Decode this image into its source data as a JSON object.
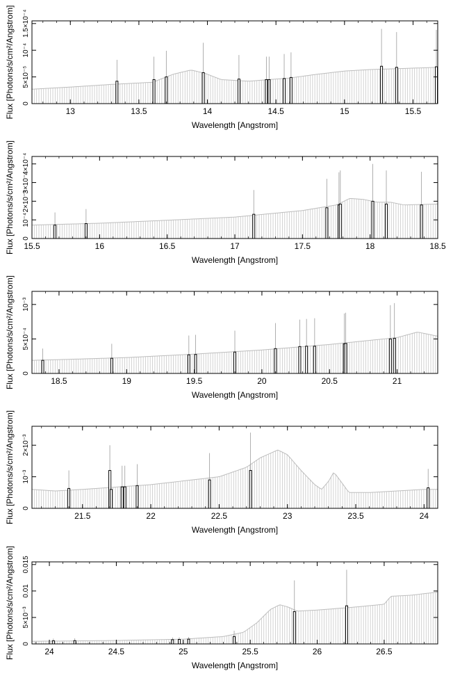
{
  "chart_data": [
    {
      "type": "line",
      "xlabel": "Wavelength [Angstrom]",
      "ylabel": "Flux [Photons/s/cm²/Angstrom]",
      "xlim": [
        12.72,
        15.68
      ],
      "ylim": [
        0,
        0.000155
      ],
      "x_ticks": [
        "13",
        "13.5",
        "14",
        "14.5",
        "15",
        "15.5"
      ],
      "x_tick_values": [
        13,
        13.5,
        14,
        14.5,
        15,
        15.5
      ],
      "y_ticks": [
        "0",
        "5×10⁻⁵",
        "10⁻⁴",
        "1.5×10⁻⁴"
      ],
      "y_tick_values": [
        0,
        5e-05,
        0.0001,
        0.00015
      ],
      "continuum": {
        "x": [
          12.72,
          13.0,
          13.3,
          13.6,
          13.75,
          13.88,
          13.98,
          14.1,
          14.3,
          14.45,
          14.6,
          14.8,
          15.0,
          15.2,
          15.45,
          15.68
        ],
        "y": [
          2.7e-05,
          3.1e-05,
          3.6e-05,
          4e-05,
          5.5e-05,
          6.3e-05,
          5.7e-05,
          4.5e-05,
          4.2e-05,
          4.5e-05,
          4.8e-05,
          5.5e-05,
          6.1e-05,
          6.4e-05,
          6.6e-05,
          6.8e-05
        ]
      },
      "lines": {
        "x": [
          13.34,
          13.61,
          13.7,
          13.97,
          14.23,
          14.43,
          14.45,
          14.56,
          14.61,
          15.27,
          15.38,
          15.67
        ],
        "y": [
          4.2e-05,
          4.5e-05,
          5e-05,
          5.8e-05,
          4.6e-05,
          4.5e-05,
          4.5e-05,
          4.7e-05,
          4.9e-05,
          7e-05,
          6.8e-05,
          6.9e-05
        ],
        "err": [
          8.2e-05,
          8.8e-05,
          9.9e-05,
          0.000114,
          9.1e-05,
          8.8e-05,
          8.8e-05,
          9.3e-05,
          9.6e-05,
          0.00014,
          0.000134,
          0.000138
        ]
      }
    },
    {
      "type": "line",
      "xlabel": "Wavelength [Angstrom]",
      "ylabel": "Flux [Photons/s/cm²/Angstrom]",
      "xlim": [
        15.5,
        18.5
      ],
      "ylim": [
        0,
        0.00044
      ],
      "x_ticks": [
        "15.5",
        "16",
        "16.5",
        "17",
        "17.5",
        "18",
        "18.5"
      ],
      "x_tick_values": [
        15.5,
        16,
        16.5,
        17,
        17.5,
        18,
        18.5
      ],
      "y_ticks": [
        "0",
        "10⁻⁴",
        "2×10⁻⁴",
        "3×10⁻⁴",
        "4×10⁻⁴"
      ],
      "y_tick_values": [
        0,
        0.0001,
        0.0002,
        0.0003,
        0.0004
      ],
      "continuum": {
        "x": [
          15.5,
          16.0,
          16.5,
          17.0,
          17.5,
          17.75,
          17.85,
          17.95,
          18.05,
          18.15,
          18.25,
          18.35,
          18.5
        ],
        "y": [
          7.2e-05,
          8.2e-05,
          9.8e-05,
          0.000115,
          0.00015,
          0.00018,
          0.000215,
          0.00021,
          0.000195,
          0.000195,
          0.00018,
          0.000182,
          0.000185
        ]
      },
      "lines": {
        "x": [
          15.67,
          15.9,
          17.14,
          17.68,
          17.77,
          17.78,
          18.02,
          18.12,
          18.38
        ],
        "y": [
          7.2e-05,
          8e-05,
          0.00013,
          0.000165,
          0.00018,
          0.000185,
          0.0002,
          0.000185,
          0.00018
        ],
        "err": [
          0.00014,
          0.000158,
          0.00026,
          0.00032,
          0.000355,
          0.000365,
          0.0004,
          0.000365,
          0.000358
        ]
      }
    },
    {
      "type": "line",
      "xlabel": "Wavelength [Angstrom]",
      "ylabel": "Flux [Photons/s/cm²/Angstrom]",
      "xlim": [
        18.3,
        21.3
      ],
      "ylim": [
        0,
        0.00119
      ],
      "x_ticks": [
        "18.5",
        "19",
        "19.5",
        "20",
        "20.5",
        "21"
      ],
      "x_tick_values": [
        18.5,
        19,
        19.5,
        20,
        20.5,
        21
      ],
      "y_ticks": [
        "0",
        "5×10⁻⁴",
        "10⁻³"
      ],
      "y_tick_values": [
        0,
        0.0005,
        0.001
      ],
      "continuum": {
        "x": [
          18.3,
          18.5,
          19.0,
          19.5,
          20.0,
          20.5,
          21.0,
          21.15,
          21.3
        ],
        "y": [
          0.00019,
          0.0002,
          0.00023,
          0.00028,
          0.00034,
          0.00042,
          0.00052,
          0.0006,
          0.00054
        ]
      },
      "lines": {
        "x": [
          18.38,
          18.89,
          19.46,
          19.51,
          19.8,
          20.1,
          20.28,
          20.33,
          20.39,
          20.61,
          20.62,
          20.95,
          20.98
        ],
        "y": [
          0.00019,
          0.00022,
          0.00027,
          0.000275,
          0.00031,
          0.00036,
          0.00039,
          0.000395,
          0.000395,
          0.00043,
          0.000435,
          0.0005,
          0.00051
        ],
        "err": [
          0.00036,
          0.00043,
          0.00055,
          0.00056,
          0.00062,
          0.00073,
          0.00078,
          0.00079,
          0.0008,
          0.00087,
          0.00088,
          0.00099,
          0.00102
        ]
      }
    },
    {
      "type": "line",
      "xlabel": "Wavelength [Angstrom]",
      "ylabel": "Flux [Photons/s/cm²/Angstrom]",
      "xlim": [
        21.13,
        24.1
      ],
      "ylim": [
        0,
        0.0026
      ],
      "x_ticks": [
        "21.5",
        "22",
        "22.5",
        "23",
        "23.5",
        "24"
      ],
      "x_tick_values": [
        21.5,
        22,
        22.5,
        23,
        23.5,
        24
      ],
      "y_ticks": [
        "0",
        "10⁻³",
        "2×10⁻³"
      ],
      "y_tick_values": [
        0,
        0.001,
        0.002
      ],
      "continuum": {
        "x": [
          21.13,
          21.3,
          21.5,
          22.0,
          22.5,
          22.7,
          22.8,
          22.93,
          23.0,
          23.1,
          23.2,
          23.25,
          23.3,
          23.34,
          23.4,
          23.45,
          23.6,
          24.0,
          24.1
        ],
        "y": [
          0.0006,
          0.00055,
          0.0006,
          0.00075,
          0.001,
          0.0013,
          0.0016,
          0.00185,
          0.0017,
          0.0012,
          0.00075,
          0.0006,
          0.00085,
          0.00115,
          0.0008,
          0.0005,
          0.0005,
          0.0006,
          0.0006
        ]
      },
      "lines": {
        "x": [
          21.4,
          21.7,
          21.71,
          21.79,
          21.81,
          21.9,
          22.43,
          22.73,
          24.03
        ],
        "y": [
          0.00063,
          0.0012,
          0.0006,
          0.00068,
          0.00068,
          0.00072,
          0.0009,
          0.0012,
          0.00065
        ],
        "err": [
          0.0012,
          0.002,
          0.0012,
          0.00135,
          0.00135,
          0.0014,
          0.00175,
          0.0024,
          0.00125
        ]
      }
    },
    {
      "type": "line",
      "xlabel": "Wavelength [Angstrom]",
      "ylabel": "Flux [Photons/s/cm²/Angstrom]",
      "xlim": [
        23.87,
        26.9
      ],
      "ylim": [
        0,
        0.0155
      ],
      "x_ticks": [
        "24",
        "24.5",
        "25",
        "25.5",
        "26",
        "26.5"
      ],
      "x_tick_values": [
        24,
        24.5,
        25,
        25.5,
        26,
        26.5
      ],
      "y_ticks": [
        "0",
        "5×10⁻³",
        "0.01",
        "0.015"
      ],
      "y_tick_values": [
        0,
        0.005,
        0.01,
        0.015
      ],
      "continuum": {
        "x": [
          23.87,
          24.5,
          25.0,
          25.3,
          25.45,
          25.55,
          25.65,
          25.72,
          25.78,
          25.85,
          26.0,
          26.3,
          26.5,
          26.55,
          26.7,
          26.9
        ],
        "y": [
          0.0005,
          0.00065,
          0.0009,
          0.0014,
          0.0022,
          0.004,
          0.0065,
          0.0074,
          0.007,
          0.0062,
          0.0064,
          0.007,
          0.0075,
          0.009,
          0.0092,
          0.0098
        ]
      },
      "lines": {
        "x": [
          24.03,
          24.19,
          24.92,
          24.97,
          25.04,
          25.38,
          25.83,
          26.22
        ],
        "y": [
          0.0006,
          0.00062,
          0.0008,
          0.00085,
          0.0009,
          0.0014,
          0.0061,
          0.0072
        ],
        "err": [
          0.001,
          0.00105,
          0.0012,
          0.00125,
          0.0013,
          0.0025,
          0.012,
          0.014
        ]
      }
    }
  ]
}
